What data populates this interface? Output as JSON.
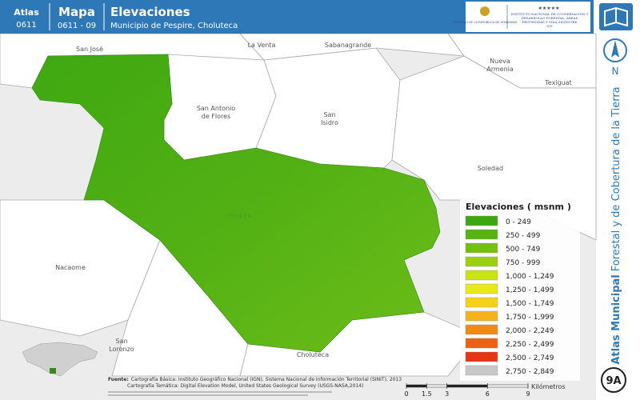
{
  "header": {
    "atlas_label": "Atlas",
    "atlas_code": "0611",
    "map_label": "Mapa",
    "map_code": "0611 - 09",
    "title": "Elevaciones",
    "subtitle": "Municipio de Pespire, Choluteca",
    "logo_gov": "GOBIERNO DE LA REPÚBLICA DE HONDURAS",
    "logo_icf": "INSTITUTO NACIONAL DE CONSERVACIÓN Y DESARROLLO FORESTAL, ÁREAS PROTEGIDAS Y VIDA SILVESTRE",
    "logo_icf_short": "ICF"
  },
  "places": {
    "san_jose": "San José",
    "la_venta": "La Venta",
    "sabanagrande": "Sabanagrande",
    "nueva_armenia": [
      "Nueva",
      "Armenia"
    ],
    "texiguat": "Texiguat",
    "san_antonio": [
      "San Antonio",
      "de Flores"
    ],
    "san_isidro": [
      "San",
      "Isidro"
    ],
    "soledad": "Soledad",
    "pespire": "Pespire",
    "nacaome": "Nacaome",
    "san_lorenzo": [
      "San",
      "Lorenzo"
    ],
    "choluteca": "Choluteca"
  },
  "legend": {
    "title": "Elevaciones ( msnm )",
    "items": [
      {
        "label": "0 - 249",
        "color": "#3ba80f"
      },
      {
        "label": "250 - 499",
        "color": "#56b412"
      },
      {
        "label": "500 - 749",
        "color": "#74c010"
      },
      {
        "label": "750 - 999",
        "color": "#9ccf10"
      },
      {
        "label": "1,000 - 1,249",
        "color": "#c9e415"
      },
      {
        "label": "1,250 - 1,499",
        "color": "#e8e81a"
      },
      {
        "label": "1,500 - 1,749",
        "color": "#f6d11a"
      },
      {
        "label": "1,750 - 1,999",
        "color": "#f6b21a"
      },
      {
        "label": "2,000 - 2,249",
        "color": "#f08a14"
      },
      {
        "label": "2,250 - 2,499",
        "color": "#ec6212"
      },
      {
        "label": "2,500 - 2,749",
        "color": "#e63414"
      },
      {
        "label": "2,750 - 2,849",
        "color": "#c8c8c8"
      }
    ]
  },
  "sources": {
    "label": "Fuente:",
    "line1": "Cartografía Básica: Instituto Geográfico Nacional (IGN), Sistema Nacional de Información Territorial (SINIT), 2013",
    "line2": "Cartografía Temática: Digital Elevation Model, United States Geological Survey (USGS-NASA,2014)"
  },
  "scale": {
    "ticks": [
      0,
      1.5,
      3,
      6,
      9
    ],
    "unit": "Kilómetros"
  },
  "sidebar": {
    "north": "N",
    "series_bold": "Atlas Municipal",
    "series_rest": "Forestal y de Cobertura de la Tierra",
    "sheet": "9A"
  }
}
